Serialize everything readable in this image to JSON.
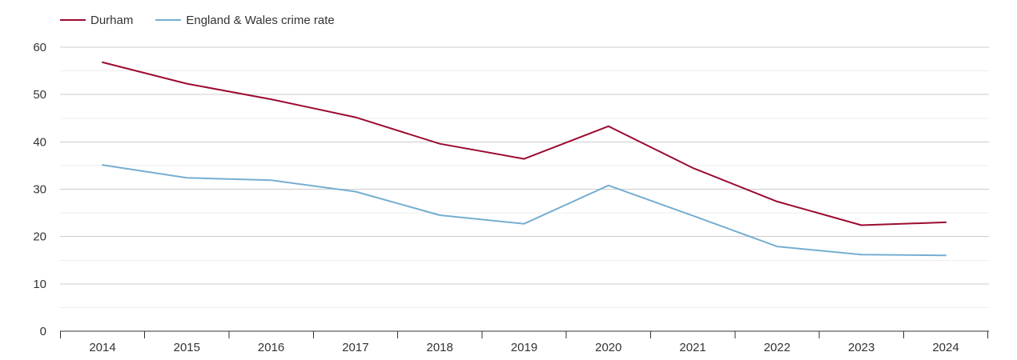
{
  "chart_data": {
    "type": "line",
    "title": "",
    "xlabel": "",
    "ylabel": "",
    "categories": [
      "2014",
      "2015",
      "2016",
      "2017",
      "2018",
      "2019",
      "2020",
      "2021",
      "2022",
      "2023",
      "2024"
    ],
    "ylim": [
      0,
      60
    ],
    "yticks": [
      "0",
      "10",
      "20",
      "30",
      "40",
      "50",
      "60"
    ],
    "grid": true,
    "legend_position": "top-left",
    "series": [
      {
        "name": "Durham",
        "color": "#9b0a2f",
        "values": [
          56.8,
          52.3,
          49.0,
          45.2,
          39.6,
          36.4,
          43.3,
          34.5,
          27.4,
          22.4,
          23.0
        ]
      },
      {
        "name": "England & Wales crime rate",
        "color": "#76aed1",
        "values": [
          35.1,
          32.4,
          31.9,
          29.5,
          24.5,
          22.7,
          30.8,
          24.4,
          17.9,
          16.2,
          16.0
        ]
      }
    ]
  }
}
